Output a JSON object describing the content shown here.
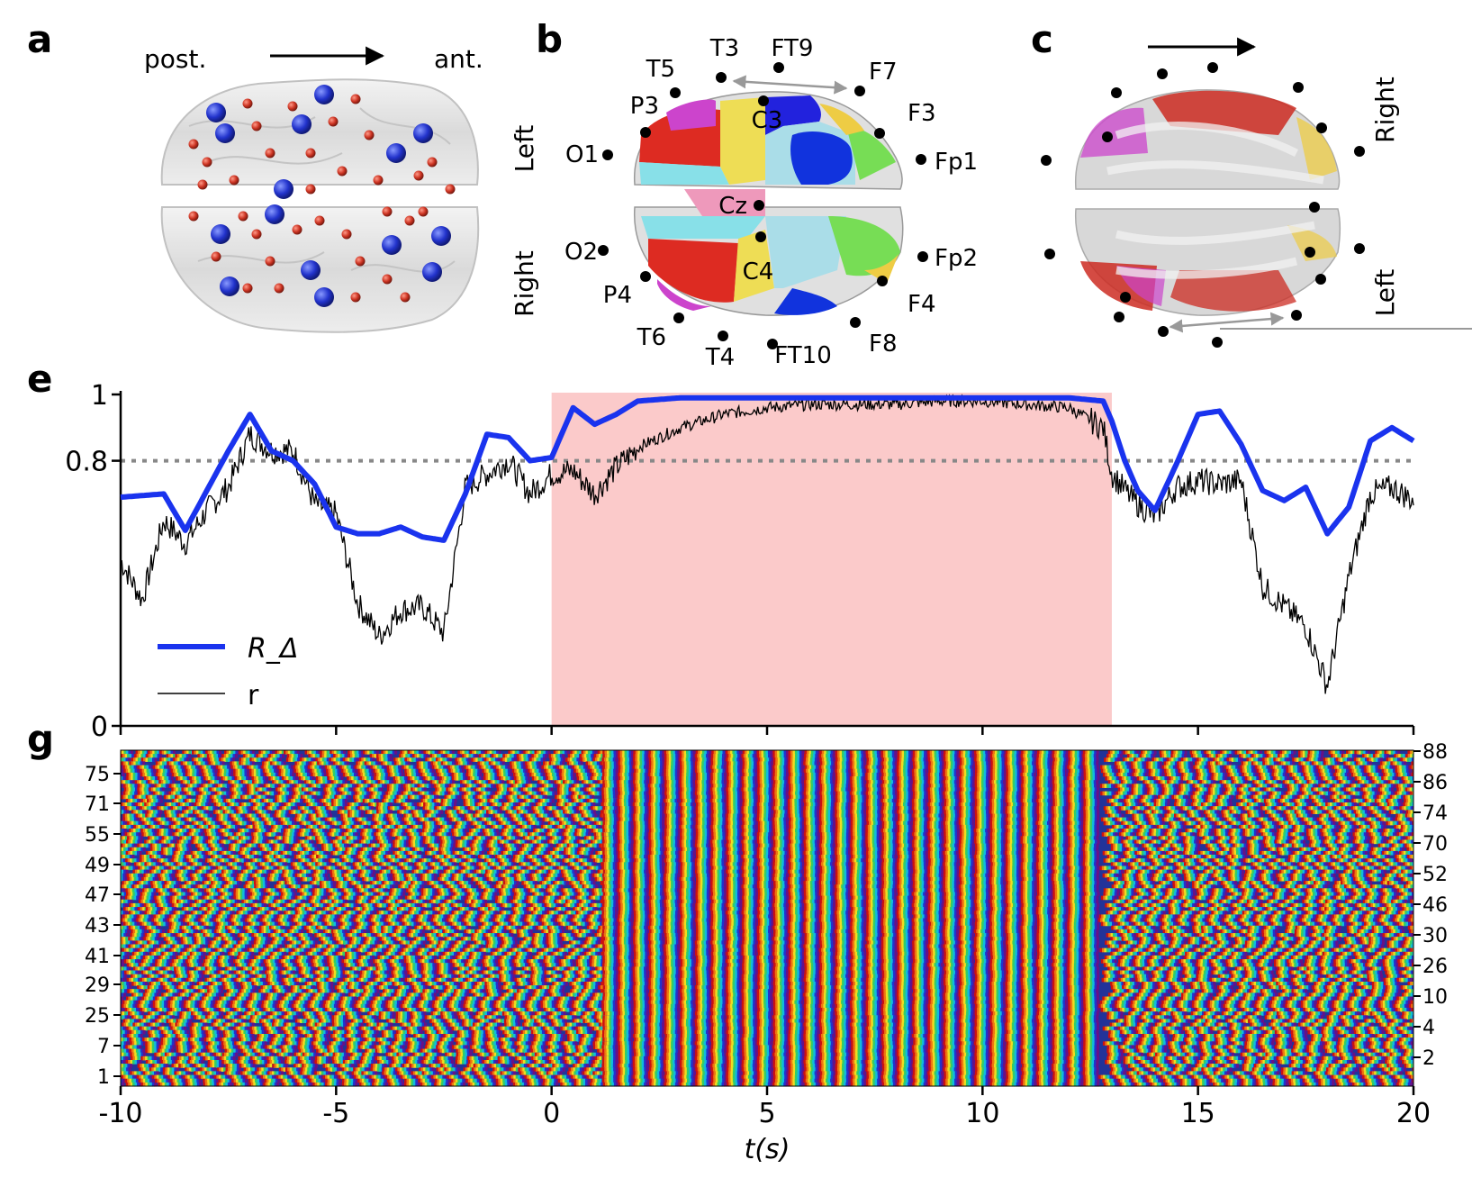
{
  "panels": {
    "a": {
      "letter": "a",
      "post_label": "post.",
      "ant_label": "ant."
    },
    "b": {
      "letter": "b",
      "left_label": "Left",
      "right_label": "Right",
      "electrodes": [
        "T3",
        "FT9",
        "T5",
        "F7",
        "P3",
        "C3",
        "F3",
        "O1",
        "Fp1",
        "Cz",
        "O2",
        "Fp2",
        "C4",
        "P4",
        "F4",
        "T6",
        "F8",
        "T4",
        "FT10"
      ]
    },
    "c": {
      "letter": "c",
      "right_label": "Right",
      "left_label": "Left"
    },
    "e": {
      "letter": "e"
    },
    "g": {
      "letter": "g"
    }
  },
  "colors": {
    "r_delta": "#1a33ee",
    "r": "#000000",
    "shade": "#fbcaca",
    "threshold": "#888888",
    "node_big": "#2233cc",
    "node_small": "#cc3322"
  },
  "chart_data": [
    {
      "id": "e",
      "type": "line",
      "xlabel": "t(s)",
      "xlim": [
        -10,
        20
      ],
      "ylim": [
        0,
        1
      ],
      "yticks": [
        0,
        0.8,
        1
      ],
      "xticks": [
        -10,
        -5,
        0,
        5,
        10,
        15,
        20
      ],
      "xtick_labels": [
        "-10",
        "-5",
        "0",
        "5",
        "10",
        "15",
        "20"
      ],
      "threshold": 0.8,
      "shaded_region": [
        0,
        13
      ],
      "legend": {
        "placement": "lower-left",
        "entries": [
          "R_Δ",
          "r"
        ]
      },
      "series": [
        {
          "name": "R_Δ",
          "x": [
            -10,
            -9,
            -8.5,
            -8,
            -7.5,
            -7,
            -6.5,
            -6,
            -5.5,
            -5,
            -4.5,
            -4,
            -3.5,
            -3,
            -2.5,
            -2,
            -1.5,
            -1,
            -0.5,
            0,
            0.5,
            1,
            1.5,
            2,
            3,
            4,
            5,
            6,
            7,
            8,
            9,
            10,
            11,
            12,
            12.8,
            13,
            13.3,
            13.6,
            14,
            14.5,
            15,
            15.5,
            16,
            16.5,
            17,
            17.5,
            18,
            18.5,
            19,
            19.5,
            20
          ],
          "values": [
            0.69,
            0.7,
            0.59,
            0.71,
            0.83,
            0.94,
            0.83,
            0.8,
            0.73,
            0.6,
            0.58,
            0.58,
            0.6,
            0.57,
            0.56,
            0.7,
            0.88,
            0.87,
            0.8,
            0.81,
            0.96,
            0.91,
            0.94,
            0.98,
            0.99,
            0.99,
            0.99,
            0.99,
            0.99,
            0.99,
            0.99,
            0.99,
            0.99,
            0.99,
            0.98,
            0.92,
            0.8,
            0.71,
            0.65,
            0.79,
            0.94,
            0.95,
            0.85,
            0.71,
            0.68,
            0.72,
            0.58,
            0.66,
            0.86,
            0.9,
            0.86
          ]
        },
        {
          "name": "r",
          "x": [
            -10,
            -9.5,
            -9,
            -8.5,
            -8,
            -7.5,
            -7,
            -6.5,
            -6,
            -5.5,
            -5,
            -4.5,
            -4,
            -3.5,
            -3,
            -2.5,
            -2,
            -1.5,
            -1,
            -0.5,
            0,
            0.5,
            1,
            1.5,
            2,
            3,
            4,
            5,
            6,
            7,
            8,
            9,
            10,
            11,
            12,
            12.8,
            13,
            13.5,
            14,
            14.5,
            15,
            15.5,
            16,
            16.5,
            17,
            17.5,
            18,
            18.5,
            19,
            19.5,
            20
          ],
          "values": [
            0.5,
            0.38,
            0.62,
            0.55,
            0.65,
            0.72,
            0.88,
            0.83,
            0.83,
            0.67,
            0.64,
            0.37,
            0.27,
            0.35,
            0.36,
            0.28,
            0.72,
            0.76,
            0.8,
            0.7,
            0.76,
            0.77,
            0.7,
            0.78,
            0.84,
            0.9,
            0.94,
            0.96,
            0.97,
            0.97,
            0.97,
            0.98,
            0.98,
            0.97,
            0.96,
            0.9,
            0.76,
            0.68,
            0.63,
            0.72,
            0.74,
            0.73,
            0.74,
            0.42,
            0.36,
            0.3,
            0.12,
            0.45,
            0.7,
            0.72,
            0.68
          ]
        }
      ]
    },
    {
      "id": "g",
      "type": "heatmap",
      "xlim": [
        -10,
        20
      ],
      "description_rows": 90,
      "left_ytick_labels": [
        "75",
        "71",
        "55",
        "49",
        "47",
        "43",
        "41",
        "29",
        "25",
        "7",
        "1"
      ],
      "right_ytick_labels": [
        "88",
        "86",
        "74",
        "70",
        "52",
        "46",
        "30",
        "26",
        "10",
        "4",
        "2"
      ]
    }
  ]
}
